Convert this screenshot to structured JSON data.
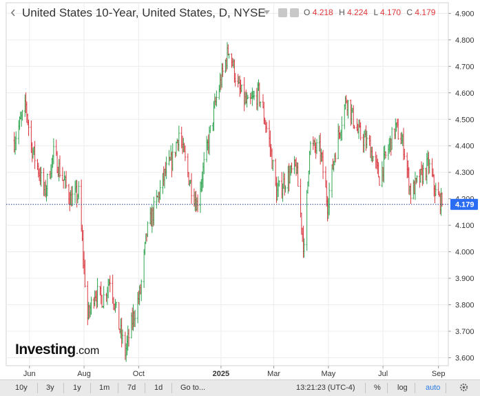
{
  "header": {
    "title": "United States 10-Year, United States, D, NYSE",
    "ohlc": [
      {
        "key": "O",
        "value": "4.218"
      },
      {
        "key": "H",
        "value": "4.224"
      },
      {
        "key": "L",
        "value": "4.170"
      },
      {
        "key": "C",
        "value": "4.179"
      }
    ]
  },
  "logo": {
    "main": "Investing",
    "suffix": ".com"
  },
  "toolbar": {
    "ranges": [
      "10y",
      "3y",
      "1y",
      "1m",
      "7d",
      "1d"
    ],
    "goto": "Go to...",
    "time": "13:21:23 (UTC-4)",
    "pct": "%",
    "log": "log",
    "auto": "auto"
  },
  "colors": {
    "up": "#2ea44f",
    "down": "#d9363e",
    "price_line": "#1f3a8a",
    "price_tag": "#2a6df4"
  },
  "chart_data": {
    "type": "candlestick",
    "x_tick_labels": [
      "Jun",
      "Aug",
      "Oct",
      "2025",
      "Mar",
      "May",
      "Jul",
      "Sep"
    ],
    "y_ticks": [
      3.6,
      3.7,
      3.8,
      3.9,
      4.0,
      4.1,
      4.2,
      4.3,
      4.4,
      4.5,
      4.6,
      4.7,
      4.8,
      4.9
    ],
    "y_tick_labels": [
      "3.600",
      "3.700",
      "3.800",
      "3.900",
      "4.000",
      "4.100",
      "4.200",
      "4.300",
      "4.400",
      "4.500",
      "4.600",
      "4.700",
      "4.800",
      "4.900"
    ],
    "ylim": [
      3.57,
      4.94
    ],
    "last_price": 4.179,
    "last_price_label": "4.179",
    "grid": true,
    "close_path": [
      [
        "2024-05-15",
        4.42
      ],
      [
        "2024-05-28",
        4.55
      ],
      [
        "2024-06-03",
        4.4
      ],
      [
        "2024-06-12",
        4.3
      ],
      [
        "2024-06-18",
        4.22
      ],
      [
        "2024-06-28",
        4.37
      ],
      [
        "2024-07-08",
        4.28
      ],
      [
        "2024-07-17",
        4.2
      ],
      [
        "2024-07-26",
        4.22
      ],
      [
        "2024-08-05",
        3.75
      ],
      [
        "2024-08-13",
        3.85
      ],
      [
        "2024-08-22",
        3.82
      ],
      [
        "2024-08-30",
        3.9
      ],
      [
        "2024-09-09",
        3.72
      ],
      [
        "2024-09-16",
        3.62
      ],
      [
        "2024-09-24",
        3.74
      ],
      [
        "2024-10-03",
        3.85
      ],
      [
        "2024-10-10",
        4.07
      ],
      [
        "2024-10-22",
        4.2
      ],
      [
        "2024-10-31",
        4.3
      ],
      [
        "2024-11-08",
        4.35
      ],
      [
        "2024-11-15",
        4.45
      ],
      [
        "2024-11-26",
        4.28
      ],
      [
        "2024-12-05",
        4.18
      ],
      [
        "2024-12-16",
        4.38
      ],
      [
        "2024-12-27",
        4.58
      ],
      [
        "2025-01-10",
        4.77
      ],
      [
        "2025-01-20",
        4.62
      ],
      [
        "2025-01-31",
        4.55
      ],
      [
        "2025-02-12",
        4.6
      ],
      [
        "2025-02-24",
        4.42
      ],
      [
        "2025-03-04",
        4.22
      ],
      [
        "2025-03-14",
        4.27
      ],
      [
        "2025-03-26",
        4.32
      ],
      [
        "2025-04-04",
        4.0
      ],
      [
        "2025-04-10",
        4.4
      ],
      [
        "2025-04-22",
        4.38
      ],
      [
        "2025-04-30",
        4.18
      ],
      [
        "2025-05-08",
        4.37
      ],
      [
        "2025-05-21",
        4.58
      ],
      [
        "2025-06-03",
        4.45
      ],
      [
        "2025-06-16",
        4.4
      ],
      [
        "2025-06-27",
        4.28
      ],
      [
        "2025-07-08",
        4.4
      ],
      [
        "2025-07-15",
        4.47
      ],
      [
        "2025-07-24",
        4.4
      ],
      [
        "2025-08-01",
        4.22
      ],
      [
        "2025-08-12",
        4.28
      ],
      [
        "2025-08-21",
        4.33
      ],
      [
        "2025-08-29",
        4.22
      ],
      [
        "2025-09-05",
        4.18
      ]
    ]
  }
}
